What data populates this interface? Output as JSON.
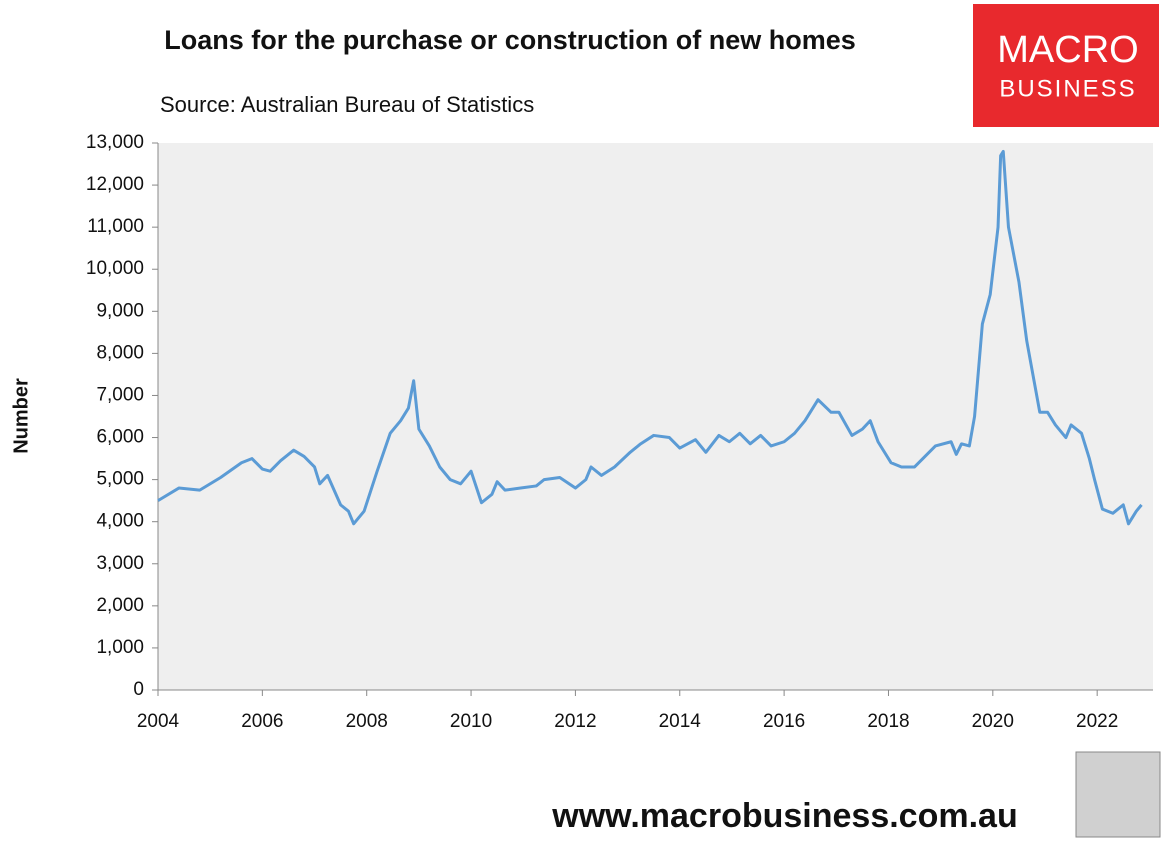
{
  "chart_data": {
    "type": "line",
    "title": "Loans for the purchase or construction of new homes",
    "subtitle": "Source: Australian Bureau of Statistics",
    "y_label": "Number",
    "logo": [
      "MACRO",
      "BUSINESS"
    ],
    "footer": "www.macrobusiness.com.au",
    "xlim": [
      2004,
      2023.07
    ],
    "xticks": [
      2004,
      2006,
      2008,
      2010,
      2012,
      2014,
      2016,
      2018,
      2020,
      2022
    ],
    "ylim": [
      0,
      13000
    ],
    "yticks": [
      0,
      {
        "value": 1000,
        "label": "1,000"
      },
      {
        "value": 2000,
        "label": "2,000"
      },
      {
        "value": 3000,
        "label": "3,000"
      },
      {
        "value": 4000,
        "label": "4,000"
      },
      {
        "value": 5000,
        "label": "5,000"
      },
      {
        "value": 6000,
        "label": "6,000"
      },
      {
        "value": 7000,
        "label": "7,000"
      },
      {
        "value": 8000,
        "label": "8,000"
      },
      {
        "value": 9000,
        "label": "9,000"
      },
      {
        "value": 10000,
        "label": "10,000"
      },
      {
        "value": 11000,
        "label": "11,000"
      },
      {
        "value": 12000,
        "label": "12,000"
      },
      {
        "value": 13000,
        "label": "13,000"
      }
    ],
    "grid": false,
    "color": "#5b9bd5",
    "x": [
      2004.0,
      2004.4,
      2004.8,
      2005.2,
      2005.6,
      2005.8,
      2006.0,
      2006.15,
      2006.35,
      2006.6,
      2006.8,
      2007.0,
      2007.1,
      2007.25,
      2007.5,
      2007.65,
      2007.75,
      2007.95,
      2008.2,
      2008.45,
      2008.65,
      2008.8,
      2008.9,
      2009.0,
      2009.2,
      2009.4,
      2009.6,
      2009.8,
      2010.0,
      2010.2,
      2010.4,
      2010.5,
      2010.65,
      2010.95,
      2011.25,
      2011.4,
      2011.7,
      2012.0,
      2012.2,
      2012.3,
      2012.5,
      2012.75,
      2013.05,
      2013.25,
      2013.5,
      2013.8,
      2014.0,
      2014.3,
      2014.5,
      2014.75,
      2014.95,
      2015.15,
      2015.35,
      2015.55,
      2015.75,
      2016.0,
      2016.2,
      2016.4,
      2016.65,
      2016.9,
      2017.05,
      2017.3,
      2017.5,
      2017.65,
      2017.8,
      2018.05,
      2018.25,
      2018.5,
      2018.7,
      2018.9,
      2019.2,
      2019.3,
      2019.4,
      2019.55,
      2019.65,
      2019.8,
      2019.95,
      2020.1,
      2020.15,
      2020.2,
      2020.3,
      2020.5,
      2020.65,
      2020.9,
      2021.05,
      2021.2,
      2021.4,
      2021.5,
      2021.7,
      2021.85,
      2021.95,
      2022.1,
      2022.3,
      2022.5,
      2022.6,
      2022.75,
      2022.85
    ],
    "values": [
      4500,
      4800,
      4750,
      5050,
      5400,
      5500,
      5250,
      5200,
      5450,
      5700,
      5550,
      5300,
      4900,
      5100,
      4400,
      4250,
      3950,
      4250,
      5200,
      6100,
      6400,
      6700,
      7350,
      6200,
      5800,
      5300,
      5000,
      4900,
      5200,
      4450,
      4650,
      4950,
      4750,
      4800,
      4850,
      5000,
      5050,
      4800,
      5000,
      5300,
      5100,
      5300,
      5650,
      5850,
      6050,
      6000,
      5750,
      5950,
      5650,
      6050,
      5900,
      6100,
      5850,
      6050,
      5800,
      5900,
      6100,
      6400,
      6900,
      6600,
      6600,
      6050,
      6200,
      6400,
      5900,
      5400,
      5300,
      5300,
      5550,
      5800,
      5900,
      5600,
      5850,
      5800,
      6500,
      8700,
      9400,
      11000,
      12700,
      12800,
      11000,
      9700,
      8300,
      6600,
      6600,
      6300,
      6000,
      6300,
      6100,
      5500,
      5000,
      4300,
      4200,
      4400,
      3950,
      4250,
      4400
    ]
  }
}
